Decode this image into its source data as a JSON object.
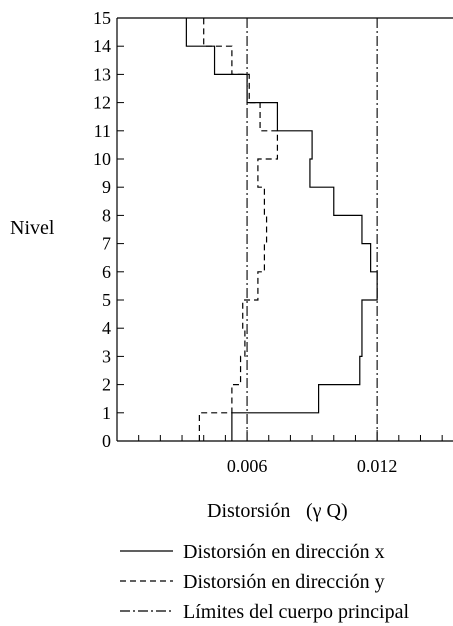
{
  "chart_data": {
    "type": "line",
    "title": "",
    "ylabel": "Nivel",
    "xlabel_main": "Distorsión",
    "xlabel_unit": "(γ Q)",
    "xlim": [
      0,
      0.0155
    ],
    "ylim": [
      0,
      15
    ],
    "y_ticks": [
      "0",
      "1",
      "2",
      "3",
      "4",
      "5",
      "6",
      "7",
      "8",
      "9",
      "10",
      "11",
      "12",
      "13",
      "14",
      "15"
    ],
    "x_tick_labels": [
      "0.006",
      "0.012"
    ],
    "x_tick_label_values": [
      0.006,
      0.012
    ],
    "legend_position": "bottom",
    "series": [
      {
        "name": "Distorsión en dirección x",
        "style": "solid",
        "steps": [
          {
            "level": 0,
            "x": 0.0053
          },
          {
            "level": 1,
            "x": 0.0093
          },
          {
            "level": 2,
            "x": 0.0112
          },
          {
            "level": 3,
            "x": 0.0113
          },
          {
            "level": 4,
            "x": 0.0113
          },
          {
            "level": 5,
            "x": 0.012
          },
          {
            "level": 6,
            "x": 0.0117
          },
          {
            "level": 7,
            "x": 0.0113
          },
          {
            "level": 8,
            "x": 0.01
          },
          {
            "level": 9,
            "x": 0.0089
          },
          {
            "level": 10,
            "x": 0.009
          },
          {
            "level": 11,
            "x": 0.0074
          },
          {
            "level": 12,
            "x": 0.006
          },
          {
            "level": 13,
            "x": 0.0045
          },
          {
            "level": 14,
            "x": 0.0032
          }
        ]
      },
      {
        "name": "Distorsión en dirección y",
        "style": "dashed",
        "steps": [
          {
            "level": 0,
            "x": 0.0038
          },
          {
            "level": 1,
            "x": 0.0053
          },
          {
            "level": 2,
            "x": 0.0057
          },
          {
            "level": 3,
            "x": 0.0059
          },
          {
            "level": 4,
            "x": 0.0058
          },
          {
            "level": 5,
            "x": 0.0065
          },
          {
            "level": 6,
            "x": 0.0068
          },
          {
            "level": 7,
            "x": 0.0069
          },
          {
            "level": 8,
            "x": 0.0068
          },
          {
            "level": 9,
            "x": 0.0065
          },
          {
            "level": 10,
            "x": 0.0074
          },
          {
            "level": 11,
            "x": 0.0066
          },
          {
            "level": 12,
            "x": 0.0061
          },
          {
            "level": 13,
            "x": 0.0053
          },
          {
            "level": 14,
            "x": 0.004
          }
        ]
      },
      {
        "name": "Límites del cuerpo principal",
        "style": "dashdot",
        "values": [
          0.006,
          0.012
        ]
      }
    ]
  }
}
